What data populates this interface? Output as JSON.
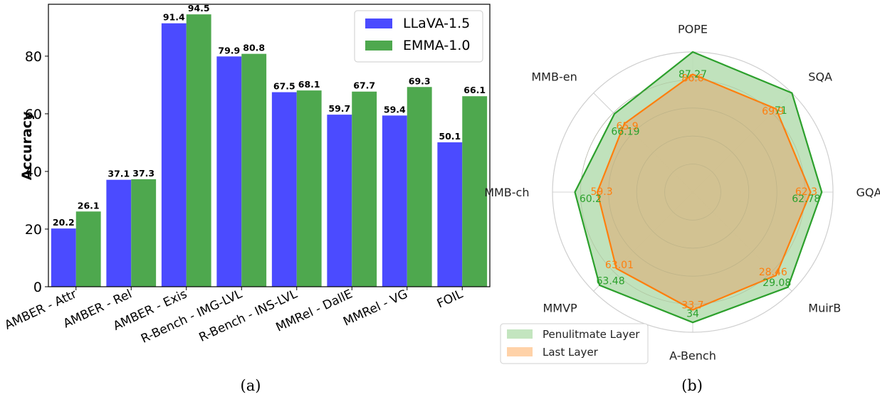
{
  "figure": {
    "caption_a": "(a)",
    "caption_b": "(b)"
  },
  "colors": {
    "llava": "#4b4bff",
    "emma": "#4ea84e",
    "penultimate_fill": "#b9dfb5",
    "penultimate_line": "#2ca02c",
    "last_line": "#ff7f0e",
    "last_fill": "#d8b784"
  },
  "chart_data": [
    {
      "type": "bar",
      "ylabel": "Accuracy",
      "xlabel": "",
      "ylim": [
        0,
        98
      ],
      "yticks": [
        0,
        20,
        40,
        60,
        80
      ],
      "grid": false,
      "legend_position": "top-right",
      "categories": [
        "AMBER - Attr",
        "AMBER - Rel",
        "AMBER - Exis",
        "R-Bench - IMG-LVL",
        "R-Bench - INS-LVL",
        "MMRel - DallE",
        "MMRel - VG",
        "FOIL"
      ],
      "series": [
        {
          "name": "LLaVA-1.5",
          "values": [
            20.2,
            37.1,
            91.4,
            79.9,
            67.5,
            59.7,
            59.4,
            50.1
          ]
        },
        {
          "name": "EMMA-1.0",
          "values": [
            26.1,
            37.3,
            94.5,
            80.8,
            68.1,
            67.7,
            69.3,
            66.1
          ]
        }
      ]
    },
    {
      "type": "radar",
      "axis_range": [
        0,
        1
      ],
      "grid": true,
      "legend_position": "bottom-left",
      "categories": [
        "POPE",
        "SQA",
        "GQA",
        "MuirB",
        "A-Bench",
        "MMVP",
        "MMB-ch",
        "MMB-en"
      ],
      "series": [
        {
          "name": "Penulitmate Layer",
          "values": [
            87.27,
            71.0,
            62.78,
            29.08,
            34.0,
            63.48,
            60.2,
            66.19
          ],
          "radius": [
            1.0,
            1.0,
            0.92,
            0.96,
            0.93,
            0.94,
            0.84,
            0.79
          ]
        },
        {
          "name": "Last Layer",
          "values": [
            86.6,
            69.9,
            62.3,
            28.46,
            33.7,
            63.01,
            59.3,
            65.9
          ],
          "radius": [
            0.84,
            0.84,
            0.84,
            0.84,
            0.84,
            0.77,
            0.68,
            0.69
          ]
        }
      ]
    }
  ]
}
